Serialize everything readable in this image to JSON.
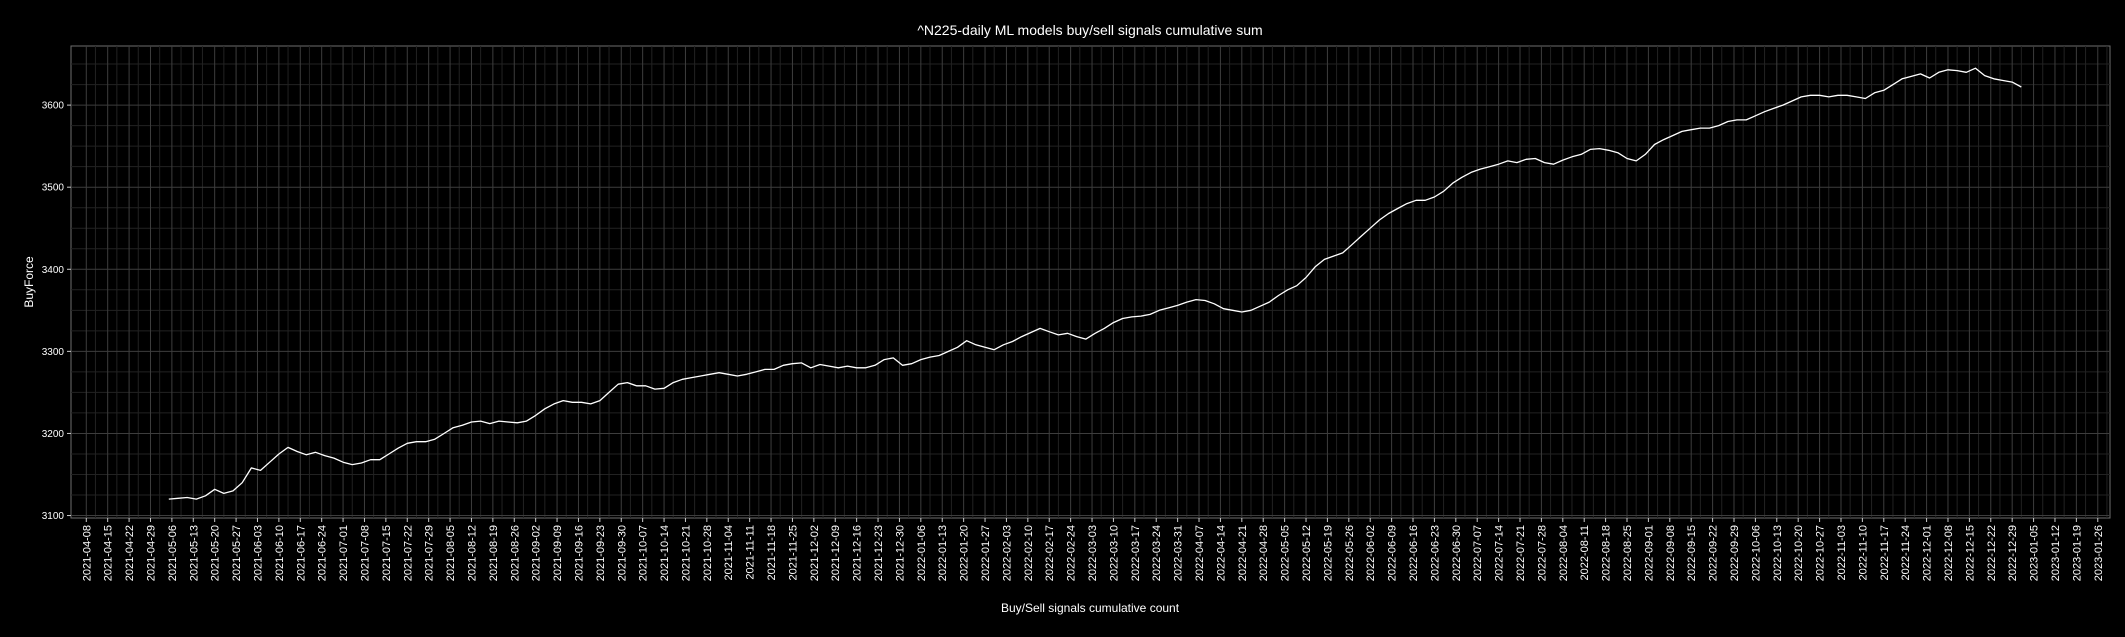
{
  "chart_data": {
    "type": "line",
    "title": "^N225-daily ML models buy/sell signals cumulative sum",
    "xlabel": "Buy/Sell signals cumulative count",
    "ylabel": "BuyForce",
    "grid": true,
    "xlim": [
      "2021-04-03",
      "2023-01-30"
    ],
    "ylim": [
      3097,
      3672
    ],
    "yticks": [
      3100,
      3200,
      3300,
      3400,
      3500,
      3600
    ],
    "xticks": [
      "2021-04-08",
      "2021-04-15",
      "2021-04-22",
      "2021-04-29",
      "2021-05-06",
      "2021-05-13",
      "2021-05-20",
      "2021-05-27",
      "2021-06-03",
      "2021-06-10",
      "2021-06-17",
      "2021-06-24",
      "2021-07-01",
      "2021-07-08",
      "2021-07-15",
      "2021-07-22",
      "2021-07-29",
      "2021-08-05",
      "2021-08-12",
      "2021-08-19",
      "2021-08-26",
      "2021-09-02",
      "2021-09-09",
      "2021-09-16",
      "2021-09-23",
      "2021-09-30",
      "2021-10-07",
      "2021-10-14",
      "2021-10-21",
      "2021-10-28",
      "2021-11-04",
      "2021-11-11",
      "2021-11-18",
      "2021-11-25",
      "2021-12-02",
      "2021-12-09",
      "2021-12-16",
      "2021-12-23",
      "2021-12-30",
      "2022-01-06",
      "2022-01-13",
      "2022-01-20",
      "2022-01-27",
      "2022-02-03",
      "2022-02-10",
      "2022-02-17",
      "2022-02-24",
      "2022-03-03",
      "2022-03-10",
      "2022-03-17",
      "2022-03-24",
      "2022-03-31",
      "2022-04-07",
      "2022-04-14",
      "2022-04-21",
      "2022-04-28",
      "2022-05-05",
      "2022-05-12",
      "2022-05-19",
      "2022-05-26",
      "2022-06-02",
      "2022-06-09",
      "2022-06-16",
      "2022-06-23",
      "2022-06-30",
      "2022-07-07",
      "2022-07-14",
      "2022-07-21",
      "2022-07-28",
      "2022-08-04",
      "2022-08-11",
      "2022-08-18",
      "2022-08-25",
      "2022-09-01",
      "2022-09-08",
      "2022-09-15",
      "2022-09-22",
      "2022-09-29",
      "2022-10-06",
      "2022-10-13",
      "2022-10-20",
      "2022-10-27",
      "2022-11-03",
      "2022-11-10",
      "2022-11-17",
      "2022-11-24",
      "2022-12-01",
      "2022-12-08",
      "2022-12-15",
      "2022-12-22",
      "2022-12-29",
      "2023-01-05",
      "2023-01-12",
      "2023-01-19",
      "2023-01-26"
    ],
    "series": [
      {
        "color": "#ffffff",
        "points": [
          [
            "2021-05-05",
            3120
          ],
          [
            "2021-05-08",
            3121
          ],
          [
            "2021-05-11",
            3122
          ],
          [
            "2021-05-14",
            3120
          ],
          [
            "2021-05-17",
            3124
          ],
          [
            "2021-05-20",
            3132
          ],
          [
            "2021-05-23",
            3127
          ],
          [
            "2021-05-26",
            3130
          ],
          [
            "2021-05-29",
            3140
          ],
          [
            "2021-06-01",
            3158
          ],
          [
            "2021-06-04",
            3155
          ],
          [
            "2021-06-07",
            3165
          ],
          [
            "2021-06-10",
            3175
          ],
          [
            "2021-06-13",
            3183
          ],
          [
            "2021-06-16",
            3178
          ],
          [
            "2021-06-19",
            3174
          ],
          [
            "2021-06-22",
            3177
          ],
          [
            "2021-06-25",
            3173
          ],
          [
            "2021-06-28",
            3170
          ],
          [
            "2021-07-01",
            3165
          ],
          [
            "2021-07-04",
            3162
          ],
          [
            "2021-07-07",
            3164
          ],
          [
            "2021-07-10",
            3168
          ],
          [
            "2021-07-13",
            3168
          ],
          [
            "2021-07-16",
            3175
          ],
          [
            "2021-07-19",
            3182
          ],
          [
            "2021-07-22",
            3188
          ],
          [
            "2021-07-25",
            3190
          ],
          [
            "2021-07-28",
            3190
          ],
          [
            "2021-07-31",
            3193
          ],
          [
            "2021-08-03",
            3200
          ],
          [
            "2021-08-06",
            3207
          ],
          [
            "2021-08-09",
            3210
          ],
          [
            "2021-08-12",
            3214
          ],
          [
            "2021-08-15",
            3215
          ],
          [
            "2021-08-18",
            3212
          ],
          [
            "2021-08-21",
            3215
          ],
          [
            "2021-08-24",
            3214
          ],
          [
            "2021-08-27",
            3213
          ],
          [
            "2021-08-30",
            3215
          ],
          [
            "2021-09-02",
            3222
          ],
          [
            "2021-09-05",
            3230
          ],
          [
            "2021-09-08",
            3236
          ],
          [
            "2021-09-11",
            3240
          ],
          [
            "2021-09-14",
            3238
          ],
          [
            "2021-09-17",
            3238
          ],
          [
            "2021-09-20",
            3236
          ],
          [
            "2021-09-23",
            3240
          ],
          [
            "2021-09-26",
            3250
          ],
          [
            "2021-09-29",
            3260
          ],
          [
            "2021-10-02",
            3262
          ],
          [
            "2021-10-05",
            3258
          ],
          [
            "2021-10-08",
            3258
          ],
          [
            "2021-10-11",
            3254
          ],
          [
            "2021-10-14",
            3255
          ],
          [
            "2021-10-17",
            3262
          ],
          [
            "2021-10-20",
            3266
          ],
          [
            "2021-10-23",
            3268
          ],
          [
            "2021-10-26",
            3270
          ],
          [
            "2021-10-29",
            3272
          ],
          [
            "2021-11-01",
            3274
          ],
          [
            "2021-11-04",
            3272
          ],
          [
            "2021-11-07",
            3270
          ],
          [
            "2021-11-10",
            3272
          ],
          [
            "2021-11-13",
            3275
          ],
          [
            "2021-11-16",
            3278
          ],
          [
            "2021-11-19",
            3278
          ],
          [
            "2021-11-22",
            3283
          ],
          [
            "2021-11-25",
            3285
          ],
          [
            "2021-11-28",
            3286
          ],
          [
            "2021-12-01",
            3280
          ],
          [
            "2021-12-04",
            3284
          ],
          [
            "2021-12-07",
            3282
          ],
          [
            "2021-12-10",
            3280
          ],
          [
            "2021-12-13",
            3282
          ],
          [
            "2021-12-16",
            3280
          ],
          [
            "2021-12-19",
            3280
          ],
          [
            "2021-12-22",
            3283
          ],
          [
            "2021-12-25",
            3290
          ],
          [
            "2021-12-28",
            3292
          ],
          [
            "2021-12-31",
            3283
          ],
          [
            "2022-01-03",
            3285
          ],
          [
            "2022-01-06",
            3290
          ],
          [
            "2022-01-09",
            3293
          ],
          [
            "2022-01-12",
            3295
          ],
          [
            "2022-01-15",
            3300
          ],
          [
            "2022-01-18",
            3305
          ],
          [
            "2022-01-21",
            3313
          ],
          [
            "2022-01-24",
            3308
          ],
          [
            "2022-01-27",
            3305
          ],
          [
            "2022-01-30",
            3302
          ],
          [
            "2022-02-02",
            3308
          ],
          [
            "2022-02-05",
            3312
          ],
          [
            "2022-02-08",
            3318
          ],
          [
            "2022-02-11",
            3323
          ],
          [
            "2022-02-14",
            3328
          ],
          [
            "2022-02-17",
            3324
          ],
          [
            "2022-02-20",
            3320
          ],
          [
            "2022-02-23",
            3322
          ],
          [
            "2022-02-26",
            3318
          ],
          [
            "2022-03-01",
            3315
          ],
          [
            "2022-03-04",
            3322
          ],
          [
            "2022-03-07",
            3328
          ],
          [
            "2022-03-10",
            3335
          ],
          [
            "2022-03-13",
            3340
          ],
          [
            "2022-03-16",
            3342
          ],
          [
            "2022-03-19",
            3343
          ],
          [
            "2022-03-22",
            3345
          ],
          [
            "2022-03-25",
            3350
          ],
          [
            "2022-03-28",
            3353
          ],
          [
            "2022-03-31",
            3356
          ],
          [
            "2022-04-03",
            3360
          ],
          [
            "2022-04-06",
            3363
          ],
          [
            "2022-04-09",
            3362
          ],
          [
            "2022-04-12",
            3358
          ],
          [
            "2022-04-15",
            3352
          ],
          [
            "2022-04-18",
            3350
          ],
          [
            "2022-04-21",
            3348
          ],
          [
            "2022-04-24",
            3350
          ],
          [
            "2022-04-27",
            3355
          ],
          [
            "2022-04-30",
            3360
          ],
          [
            "2022-05-03",
            3368
          ],
          [
            "2022-05-06",
            3375
          ],
          [
            "2022-05-09",
            3380
          ],
          [
            "2022-05-12",
            3390
          ],
          [
            "2022-05-15",
            3403
          ],
          [
            "2022-05-18",
            3412
          ],
          [
            "2022-05-21",
            3416
          ],
          [
            "2022-05-24",
            3420
          ],
          [
            "2022-05-27",
            3430
          ],
          [
            "2022-05-30",
            3440
          ],
          [
            "2022-06-02",
            3450
          ],
          [
            "2022-06-05",
            3460
          ],
          [
            "2022-06-08",
            3468
          ],
          [
            "2022-06-11",
            3474
          ],
          [
            "2022-06-14",
            3480
          ],
          [
            "2022-06-17",
            3484
          ],
          [
            "2022-06-20",
            3484
          ],
          [
            "2022-06-23",
            3488
          ],
          [
            "2022-06-26",
            3495
          ],
          [
            "2022-06-29",
            3505
          ],
          [
            "2022-07-02",
            3512
          ],
          [
            "2022-07-05",
            3518
          ],
          [
            "2022-07-08",
            3522
          ],
          [
            "2022-07-11",
            3525
          ],
          [
            "2022-07-14",
            3528
          ],
          [
            "2022-07-17",
            3532
          ],
          [
            "2022-07-20",
            3530
          ],
          [
            "2022-07-23",
            3534
          ],
          [
            "2022-07-26",
            3535
          ],
          [
            "2022-07-29",
            3530
          ],
          [
            "2022-08-01",
            3528
          ],
          [
            "2022-08-04",
            3533
          ],
          [
            "2022-08-07",
            3537
          ],
          [
            "2022-08-10",
            3540
          ],
          [
            "2022-08-13",
            3546
          ],
          [
            "2022-08-16",
            3547
          ],
          [
            "2022-08-19",
            3545
          ],
          [
            "2022-08-22",
            3542
          ],
          [
            "2022-08-25",
            3535
          ],
          [
            "2022-08-28",
            3532
          ],
          [
            "2022-08-31",
            3540
          ],
          [
            "2022-09-03",
            3552
          ],
          [
            "2022-09-06",
            3558
          ],
          [
            "2022-09-09",
            3563
          ],
          [
            "2022-09-12",
            3568
          ],
          [
            "2022-09-15",
            3570
          ],
          [
            "2022-09-18",
            3572
          ],
          [
            "2022-09-21",
            3572
          ],
          [
            "2022-09-24",
            3575
          ],
          [
            "2022-09-27",
            3580
          ],
          [
            "2022-09-30",
            3582
          ],
          [
            "2022-10-03",
            3582
          ],
          [
            "2022-10-06",
            3587
          ],
          [
            "2022-10-09",
            3592
          ],
          [
            "2022-10-12",
            3596
          ],
          [
            "2022-10-15",
            3600
          ],
          [
            "2022-10-18",
            3605
          ],
          [
            "2022-10-21",
            3610
          ],
          [
            "2022-10-24",
            3612
          ],
          [
            "2022-10-27",
            3612
          ],
          [
            "2022-10-30",
            3610
          ],
          [
            "2022-11-02",
            3612
          ],
          [
            "2022-11-05",
            3612
          ],
          [
            "2022-11-08",
            3610
          ],
          [
            "2022-11-11",
            3608
          ],
          [
            "2022-11-14",
            3615
          ],
          [
            "2022-11-17",
            3618
          ],
          [
            "2022-11-20",
            3625
          ],
          [
            "2022-11-23",
            3632
          ],
          [
            "2022-11-26",
            3635
          ],
          [
            "2022-11-29",
            3638
          ],
          [
            "2022-12-02",
            3633
          ],
          [
            "2022-12-05",
            3640
          ],
          [
            "2022-12-08",
            3643
          ],
          [
            "2022-12-11",
            3642
          ],
          [
            "2022-12-14",
            3640
          ],
          [
            "2022-12-17",
            3645
          ],
          [
            "2022-12-20",
            3636
          ],
          [
            "2022-12-23",
            3632
          ],
          [
            "2022-12-26",
            3630
          ],
          [
            "2022-12-29",
            3628
          ],
          [
            "2023-01-01",
            3622
          ]
        ]
      }
    ]
  }
}
